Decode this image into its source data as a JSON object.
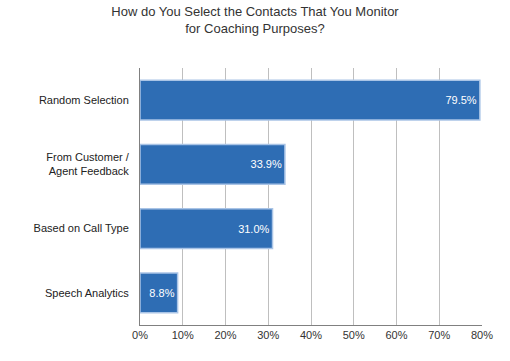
{
  "chart_data": {
    "type": "bar",
    "orientation": "horizontal",
    "title": "How do You Select the Contacts That You Monitor for Coaching Purposes?",
    "categories": [
      "Random Selection",
      "From Customer / Agent Feedback",
      "Based on Call Type",
      "Speech Analytics"
    ],
    "values": [
      79.5,
      33.9,
      31.0,
      8.8
    ],
    "value_labels": [
      "79.5%",
      "33.9%",
      "31.0%",
      "8.8%"
    ],
    "data_labels": true,
    "color": "#2e6db4",
    "xlim": [
      0,
      80
    ],
    "xticks": [
      {
        "value": 0,
        "label": "0%"
      },
      {
        "value": 10,
        "label": "10%"
      },
      {
        "value": 20,
        "label": "20%"
      },
      {
        "value": 30,
        "label": "30%"
      },
      {
        "value": 40,
        "label": "40%"
      },
      {
        "value": 50,
        "label": "50%"
      },
      {
        "value": 60,
        "label": "60%"
      },
      {
        "value": 70,
        "label": "70%"
      },
      {
        "value": 80,
        "label": "80%"
      }
    ],
    "grid": true
  }
}
